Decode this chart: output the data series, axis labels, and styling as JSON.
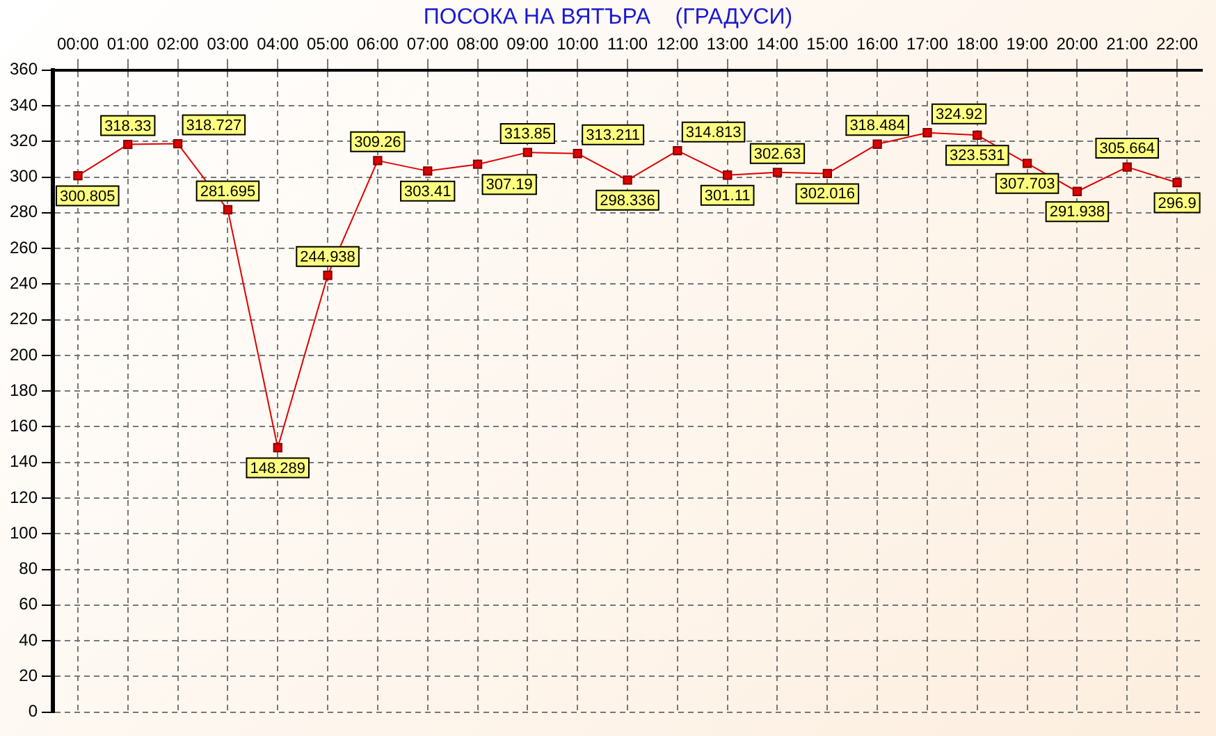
{
  "chart_data": {
    "type": "line",
    "title": "ПОСОКА НА ВЯТЪРА    (ГРАДУСИ)",
    "categories": [
      "00:00",
      "01:00",
      "02:00",
      "03:00",
      "04:00",
      "05:00",
      "06:00",
      "07:00",
      "08:00",
      "09:00",
      "10:00",
      "11:00",
      "12:00",
      "13:00",
      "14:00",
      "15:00",
      "16:00",
      "17:00",
      "18:00",
      "19:00",
      "20:00",
      "21:00",
      "22:00"
    ],
    "series": [
      {
        "color": "#e00000",
        "values": [
          300.805,
          318.33,
          318.727,
          281.695,
          148.289,
          244.938,
          309.26,
          303.41,
          307.19,
          313.85,
          313.211,
          298.336,
          314.813,
          301.11,
          302.63,
          302.016,
          318.484,
          324.92,
          323.531,
          307.703,
          291.938,
          305.664,
          296.9
        ]
      }
    ],
    "ylim": [
      0,
      360
    ],
    "yticks": [
      0,
      20,
      40,
      60,
      80,
      100,
      120,
      140,
      160,
      180,
      200,
      220,
      240,
      260,
      280,
      300,
      320,
      340,
      360
    ],
    "grid": true,
    "legend": false,
    "marker": "square",
    "line_style": "solid",
    "data_labels": true
  }
}
